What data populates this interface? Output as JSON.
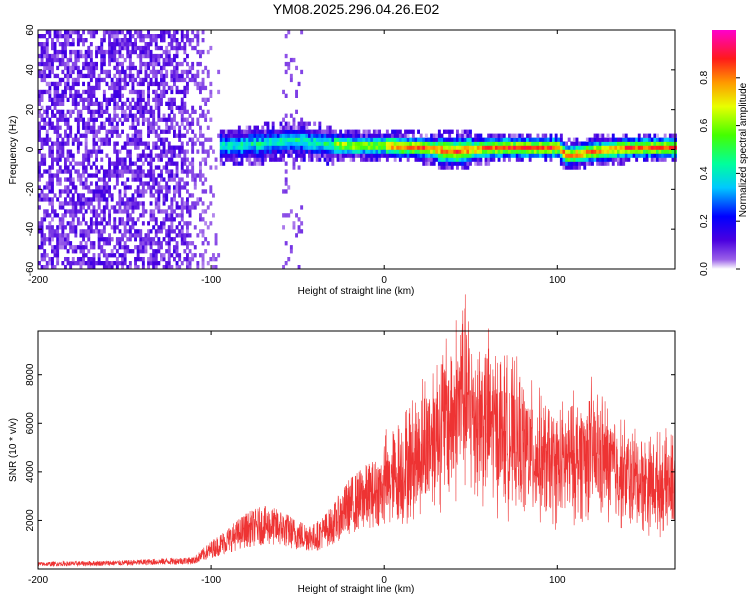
{
  "title": "YM08.2025.296.04.26.E02",
  "chart_data": [
    {
      "type": "heatmap",
      "name": "spectrogram",
      "xlabel": "Height of straight line (km)",
      "ylabel": "Frequency (Hz)",
      "xlim": [
        -200,
        168
      ],
      "ylim": [
        -60,
        60
      ],
      "xticks": [
        "-200",
        "-100",
        "0",
        "100"
      ],
      "yticks": [
        "60",
        "40",
        "20",
        "0",
        "-20",
        "-40",
        "-60"
      ],
      "colorbar": {
        "label": "Normalized spectral amplitude",
        "range": [
          0,
          1
        ],
        "ticks": [
          "0.0",
          "0.2",
          "0.4",
          "0.6",
          "0.8"
        ]
      },
      "center_line": [
        [
          -110,
          0
        ],
        [
          -90,
          1
        ],
        [
          -70,
          2
        ],
        [
          -55,
          4
        ],
        [
          -45,
          3
        ],
        [
          -35,
          2
        ],
        [
          -20,
          1
        ],
        [
          0,
          1
        ],
        [
          20,
          0
        ],
        [
          40,
          -2
        ],
        [
          60,
          0
        ],
        [
          80,
          0
        ],
        [
          100,
          0
        ],
        [
          105,
          -4
        ],
        [
          120,
          -2
        ],
        [
          140,
          0
        ],
        [
          168,
          0
        ]
      ],
      "noise_region": [
        -200,
        -95
      ]
    },
    {
      "type": "line",
      "name": "snr",
      "xlabel": "Height of straight line (km)",
      "ylabel": "SNR (10 * v/v)",
      "xlim": [
        -200,
        168
      ],
      "ylim": [
        0,
        9800
      ],
      "xticks": [
        "-200",
        "-100",
        "0",
        "100"
      ],
      "yticks": [
        "2000",
        "4000",
        "6000",
        "8000"
      ],
      "color": "#ee3333",
      "envelope": [
        [
          -200,
          200
        ],
        [
          -150,
          250
        ],
        [
          -110,
          350
        ],
        [
          -100,
          800
        ],
        [
          -90,
          1200
        ],
        [
          -80,
          1600
        ],
        [
          -70,
          1800
        ],
        [
          -60,
          1700
        ],
        [
          -50,
          1400
        ],
        [
          -40,
          1300
        ],
        [
          -30,
          1800
        ],
        [
          -20,
          2600
        ],
        [
          -10,
          3000
        ],
        [
          0,
          3300
        ],
        [
          10,
          3800
        ],
        [
          20,
          4500
        ],
        [
          30,
          5500
        ],
        [
          40,
          6000
        ],
        [
          45,
          6800
        ],
        [
          50,
          6200
        ],
        [
          60,
          5800
        ],
        [
          70,
          5300
        ],
        [
          80,
          4800
        ],
        [
          90,
          4300
        ],
        [
          100,
          4000
        ],
        [
          110,
          4300
        ],
        [
          120,
          4600
        ],
        [
          130,
          4100
        ],
        [
          140,
          3600
        ],
        [
          150,
          3400
        ],
        [
          160,
          3300
        ],
        [
          168,
          3300
        ]
      ],
      "peak": [
        45,
        9700
      ]
    }
  ]
}
